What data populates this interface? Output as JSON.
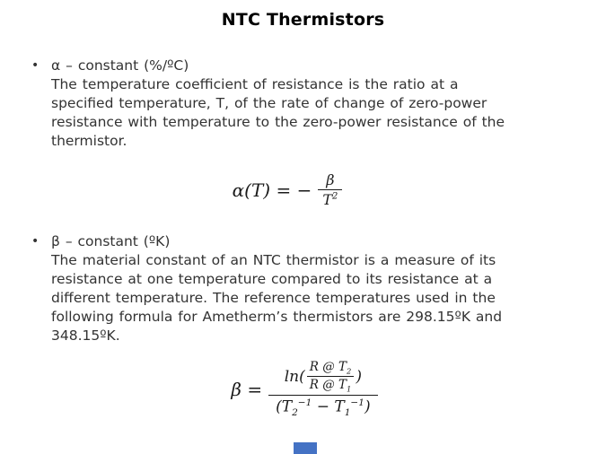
{
  "title": "NTC Thermistors",
  "bullet_char": "•",
  "bullets": [
    {
      "heading": "α – constant (%/ºC)",
      "body_lines": [
        "The temperature coefficient of resistance is the ratio at a",
        "specified temperature, T, of the rate of change of zero-power",
        "resistance with temperature to the zero-power resistance of the",
        "thermistor."
      ]
    },
    {
      "heading": "β – constant (ºK)",
      "body_lines": [
        "The material constant of an NTC thermistor is a measure of its",
        "resistance at one temperature compared to its resistance at a",
        "different temperature. The reference temperatures used in the",
        "following formula for Ametherm’s thermistors are 298.15ºK and",
        "348.15ºK."
      ]
    }
  ],
  "formulas": {
    "alpha": {
      "lhs": "α(T) = −",
      "numerator": "β",
      "den_base": "T",
      "den_exponent": "2"
    },
    "beta": {
      "lhs": "β =",
      "ln_open": "ln(",
      "inner_num_base": "R @ T",
      "inner_num_sub": "2",
      "inner_den_base": "R @ T",
      "inner_den_sub": "1",
      "close_paren": ")",
      "den_open": "(T",
      "den_sub_a": "2",
      "den_exp_a": "−1",
      "den_minus": " − T",
      "den_sub_b": "1",
      "den_exp_b": "−1",
      "den_close": ")"
    }
  },
  "footer": {
    "accent_color": "#4472c4"
  }
}
